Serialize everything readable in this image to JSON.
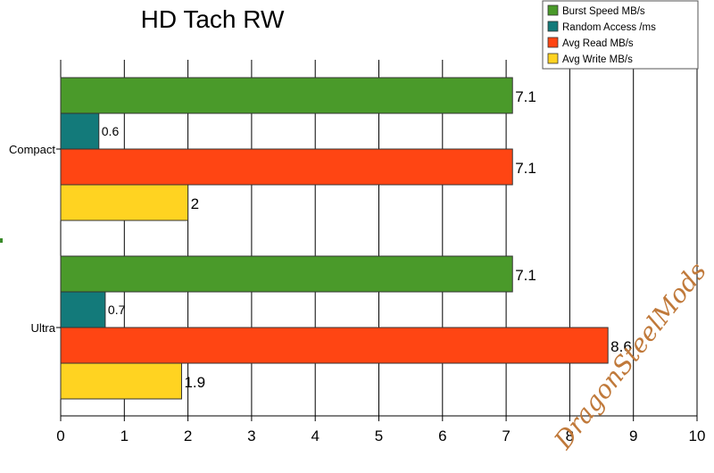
{
  "chart_data": {
    "type": "bar",
    "orientation": "horizontal",
    "title": "HD Tach RW",
    "categories": [
      "Compact",
      "Ultra"
    ],
    "series": [
      {
        "name": "Burst Speed MB/s",
        "color": "#4a9a2a",
        "values": [
          7.1,
          7.1
        ]
      },
      {
        "name": "Random Access /ms",
        "color": "#137a7a",
        "values": [
          0.6,
          0.7
        ]
      },
      {
        "name": "Avg Read MB/s",
        "color": "#ff4513",
        "values": [
          7.1,
          8.6
        ]
      },
      {
        "name": "Avg Write MB/s",
        "color": "#ffd321",
        "values": [
          2,
          1.9
        ]
      }
    ],
    "data_labels": [
      [
        "7.1",
        "0.6",
        "7.1",
        "2"
      ],
      [
        "7.1",
        "0.7",
        "8.6",
        "1.9"
      ]
    ],
    "xlim": [
      0,
      10
    ],
    "xticks": [
      "0",
      "1",
      "2",
      "3",
      "4",
      "5",
      "6",
      "7",
      "8",
      "9",
      "10"
    ],
    "grid": "vertical",
    "legend_position": "top-right"
  },
  "watermark": {
    "text": "DragonSteelMods",
    "color": "#c0793a"
  }
}
